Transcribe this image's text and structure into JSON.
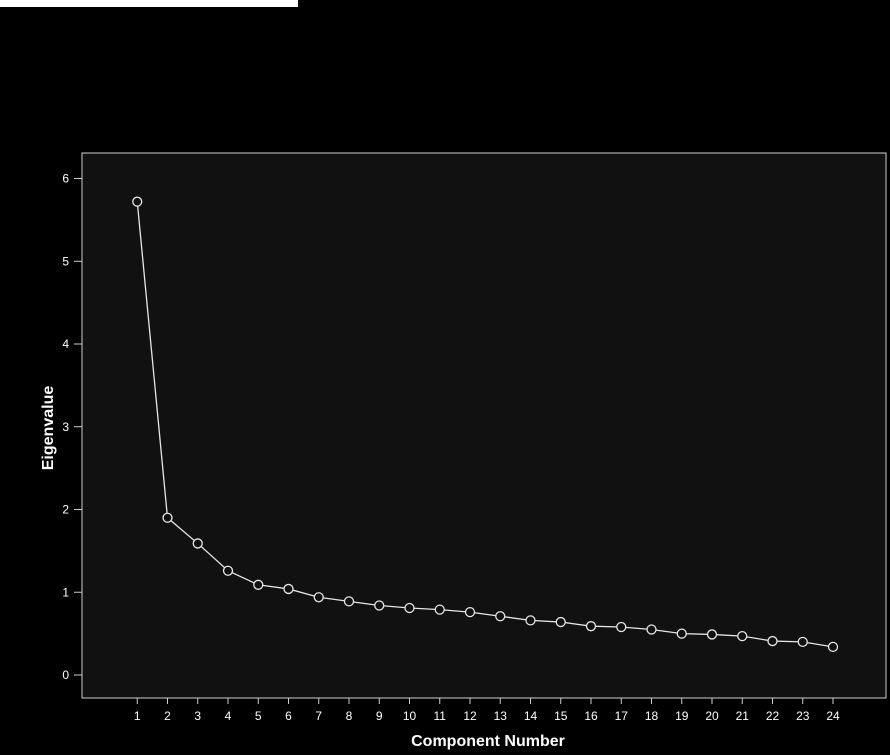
{
  "chart_data": {
    "type": "line",
    "title": "",
    "xlabel": "Component Number",
    "ylabel": "Eigenvalue",
    "x": [
      1,
      2,
      3,
      4,
      5,
      6,
      7,
      8,
      9,
      10,
      11,
      12,
      13,
      14,
      15,
      16,
      17,
      18,
      19,
      20,
      21,
      22,
      23,
      24
    ],
    "series": [
      {
        "values": [
          5.72,
          1.9,
          1.59,
          1.26,
          1.09,
          1.04,
          0.94,
          0.89,
          0.84,
          0.81,
          0.79,
          0.76,
          0.71,
          0.66,
          0.64,
          0.59,
          0.58,
          0.55,
          0.5,
          0.49,
          0.47,
          0.41,
          0.4,
          0.34
        ]
      }
    ],
    "xlim": [
      0,
      25
    ],
    "ylim": [
      -0.2,
      6.3
    ],
    "yticks": [
      0,
      1,
      2,
      3,
      4,
      5,
      6
    ],
    "grid": false,
    "legend": "none",
    "colors": {
      "background": "#000000",
      "plot_area": "#111111",
      "line": "#e6e6e6",
      "marker": "#e6e6e6",
      "axis": "#cfcfcf",
      "text": "#ffffff"
    }
  }
}
